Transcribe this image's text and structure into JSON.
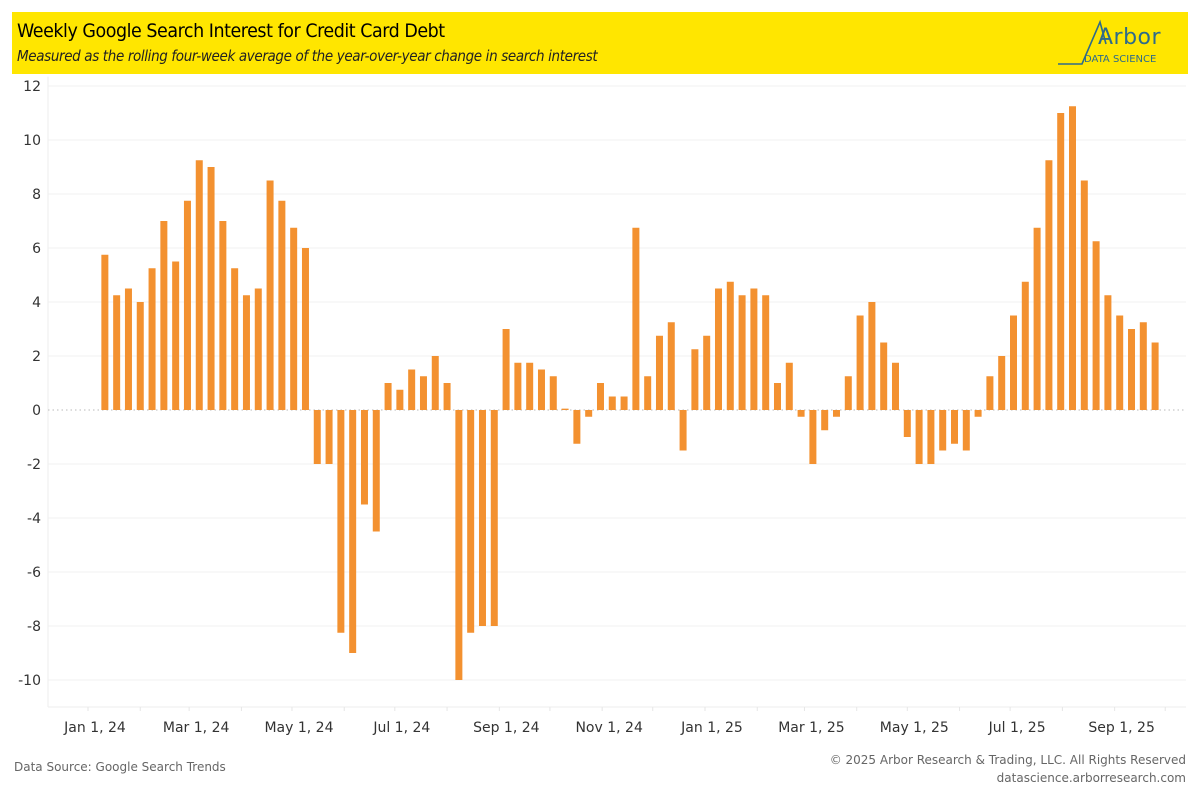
{
  "header": {
    "title": "Weekly Google Search Interest for Credit Card Debt",
    "subtitle": "Measured as the rolling four-week average of the year-over-year change in search interest",
    "logo_name": "Arbor",
    "logo_sub": "DATA SCIENCE",
    "background_color": "#ffe600",
    "logo_color": "#2e6b8a"
  },
  "footer": {
    "source": "Data Source: Google Search Trends",
    "copyright": "© 2025 Arbor Research & Trading, LLC. All Rights Reserved",
    "website": "datascience.arborresearch.com"
  },
  "chart_data": {
    "type": "bar",
    "title": "Weekly Google Search Interest for Credit Card Debt",
    "subtitle": "Measured as the rolling four-week average of the year-over-year change in search interest",
    "xlabel": "",
    "ylabel": "",
    "bar_color": "#f39130",
    "ylim": [
      -11,
      12.2
    ],
    "yticks": [
      12,
      10,
      8,
      6,
      4,
      2,
      0,
      -2,
      -4,
      -6,
      -8,
      -10
    ],
    "xticks": [
      {
        "label": "Jan 1, 24",
        "date": "2024-01-01"
      },
      {
        "label": "Mar 1, 24",
        "date": "2024-03-01"
      },
      {
        "label": "May 1, 24",
        "date": "2024-05-01"
      },
      {
        "label": "Jul 1, 24",
        "date": "2024-07-01"
      },
      {
        "label": "Sep 1, 24",
        "date": "2024-09-01"
      },
      {
        "label": "Nov 1, 24",
        "date": "2024-11-01"
      },
      {
        "label": "Jan 1, 25",
        "date": "2025-01-01"
      },
      {
        "label": "Mar 1, 25",
        "date": "2025-03-01"
      },
      {
        "label": "May 1, 25",
        "date": "2025-05-01"
      },
      {
        "label": "Jul 1, 25",
        "date": "2025-07-01"
      },
      {
        "label": "Sep 1, 25",
        "date": "2025-09-01"
      }
    ],
    "x_start": "2024-01-11",
    "x_step_days": 7,
    "grid": true,
    "legend": "none",
    "values": [
      5.75,
      4.25,
      4.5,
      4.0,
      5.25,
      7.0,
      5.5,
      7.75,
      9.25,
      9.0,
      7.0,
      5.25,
      4.25,
      4.5,
      8.5,
      7.75,
      6.75,
      6.0,
      -2.0,
      -2.0,
      -8.25,
      -9.0,
      -3.5,
      -4.5,
      1.0,
      0.75,
      1.5,
      1.25,
      2.0,
      1.0,
      -10.0,
      -8.25,
      -8.0,
      -8.0,
      3.0,
      1.75,
      1.75,
      1.5,
      1.25,
      0.05,
      -1.25,
      -0.25,
      1.0,
      0.5,
      0.5,
      6.75,
      1.25,
      2.75,
      3.25,
      -1.5,
      2.25,
      2.75,
      4.5,
      4.75,
      4.25,
      4.5,
      4.25,
      1.0,
      1.75,
      -0.25,
      -2.0,
      -0.75,
      -0.25,
      1.25,
      3.5,
      4.0,
      2.5,
      1.75,
      -1.0,
      -2.0,
      -2.0,
      -1.5,
      -1.25,
      -1.5,
      -0.25,
      1.25,
      2.0,
      3.5,
      4.75,
      6.75,
      9.25,
      11.0,
      11.25,
      8.5,
      6.25,
      4.25,
      3.5,
      3.0,
      3.25,
      2.5
    ]
  }
}
